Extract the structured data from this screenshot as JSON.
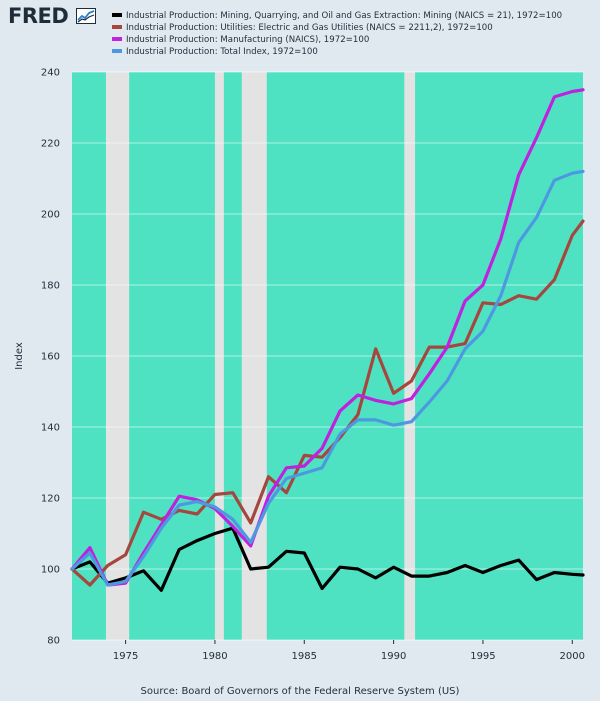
{
  "header": {
    "logo_text": "FRED"
  },
  "source": "Source: Board of Governors of the Federal Reserve System (US)",
  "colors": {
    "plot_background": "#4fe2c2",
    "recession_shade": "#e3e3e3",
    "page_background": "#e1e9f0",
    "text": "#1f2d3a"
  },
  "chart_data": {
    "type": "line",
    "title": "",
    "xlabel": "",
    "ylabel": "Index",
    "xlim": [
      1972,
      2000.6
    ],
    "ylim": [
      80,
      240
    ],
    "x_ticks": [
      1975,
      1980,
      1985,
      1990,
      1995,
      2000
    ],
    "y_ticks": [
      80,
      100,
      120,
      140,
      160,
      180,
      200,
      220,
      240
    ],
    "grid": "horizontal",
    "legend_position": "top",
    "recessions": [
      [
        1973.9,
        1975.2
      ],
      [
        1980.0,
        1980.5
      ],
      [
        1981.5,
        1982.9
      ],
      [
        1990.6,
        1991.2
      ]
    ],
    "x": [
      1972,
      1973,
      1974,
      1975,
      1976,
      1977,
      1978,
      1979,
      1980,
      1981,
      1982,
      1983,
      1984,
      1985,
      1986,
      1987,
      1988,
      1989,
      1990,
      1991,
      1992,
      1993,
      1994,
      1995,
      1996,
      1997,
      1998,
      1999,
      2000,
      2000.6
    ],
    "series": [
      {
        "name": "Industrial Production: Mining, Quarrying, and Oil and Gas Extraction: Mining (NAICS = 21), 1972=100",
        "color": "#000000",
        "values": [
          100,
          102,
          96,
          97.5,
          99.5,
          94,
          105.5,
          108,
          110,
          111.5,
          100,
          100.5,
          105,
          104.5,
          94.5,
          100.5,
          100,
          97.5,
          100.5,
          98,
          98,
          99,
          101,
          99,
          101,
          102.5,
          97,
          99,
          98.5,
          98.3
        ]
      },
      {
        "name": "Industrial Production: Utilities: Electric and Gas Utilities (NAICS = 2211,2), 1972=100",
        "color": "#a5473e",
        "values": [
          100,
          95.5,
          101,
          104,
          116,
          114,
          116.5,
          115.5,
          121,
          121.5,
          113,
          126,
          121.5,
          132,
          131.5,
          137,
          143.5,
          162,
          149.5,
          153,
          162.5,
          162.5,
          163.5,
          175,
          174.5,
          177,
          176,
          181.5,
          194,
          198
        ]
      },
      {
        "name": "Industrial Production: Manufacturing (NAICS), 1972=100",
        "color": "#c020df",
        "values": [
          100,
          106,
          95.5,
          96,
          104.5,
          112.5,
          120.5,
          119.5,
          117,
          112,
          106.5,
          120.5,
          128.5,
          129,
          134,
          144.5,
          149,
          147.5,
          146.5,
          148,
          155,
          162.5,
          175.5,
          180,
          193,
          211,
          221.5,
          233,
          234.5,
          235
        ]
      },
      {
        "name": "Industrial Production: Total Index, 1972=100",
        "color": "#4d98e0",
        "values": [
          100,
          104.5,
          95.5,
          96.5,
          103.5,
          111.5,
          118,
          119,
          117.5,
          114,
          107.5,
          118.5,
          125.5,
          127,
          128.5,
          138,
          142,
          142,
          140.5,
          141.5,
          147,
          153,
          162,
          167,
          177,
          192,
          199,
          209.5,
          211.5,
          212
        ]
      }
    ]
  }
}
